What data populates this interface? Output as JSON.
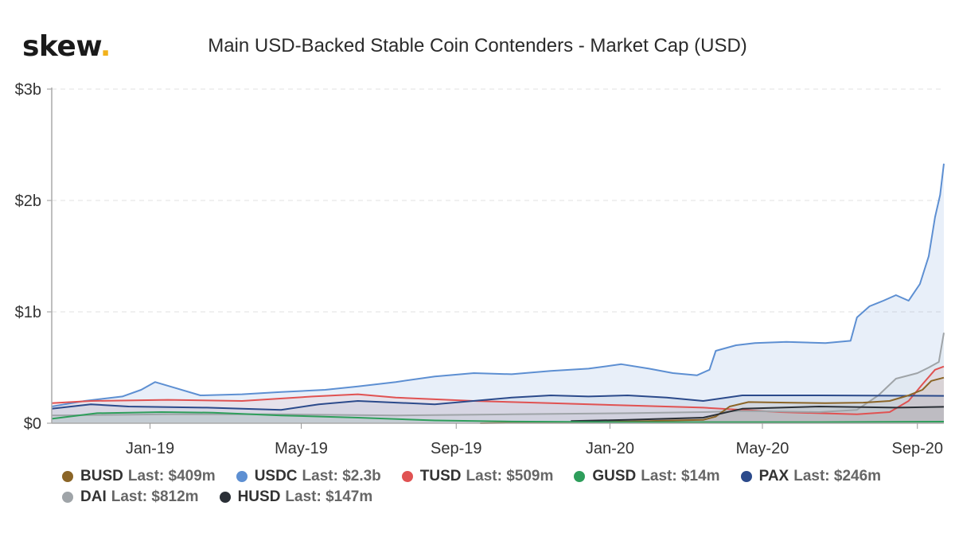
{
  "logo": {
    "text": "skew",
    "dot": "."
  },
  "chart_data": {
    "type": "area",
    "title": "Main USD-Backed Stable Coin Contenders - Market Cap (USD)",
    "xlabel": "",
    "ylabel": "",
    "x_ticks": [
      "Jan-19",
      "May-19",
      "Sep-19",
      "Jan-20",
      "May-20",
      "Sep-20"
    ],
    "y_ticks": [
      "$0",
      "$1b",
      "$2b",
      "$3b"
    ],
    "ylim": [
      0,
      3000
    ],
    "y_unit": "millions USD",
    "xlim": [
      "2018-10-15",
      "2020-09-22"
    ],
    "grid": "horizontal dashed",
    "legend_position": "bottom",
    "series": [
      {
        "name": "BUSD",
        "last_label": "Last: $409m",
        "color": "#8b6527",
        "points": [
          [
            "2019-09-20",
            0
          ],
          [
            "2019-10-20",
            5
          ],
          [
            "2019-12-15",
            10
          ],
          [
            "2020-01-15",
            15
          ],
          [
            "2020-02-20",
            25
          ],
          [
            "2020-03-15",
            30
          ],
          [
            "2020-03-25",
            60
          ],
          [
            "2020-04-05",
            150
          ],
          [
            "2020-04-20",
            190
          ],
          [
            "2020-05-20",
            185
          ],
          [
            "2020-06-20",
            180
          ],
          [
            "2020-07-20",
            185
          ],
          [
            "2020-08-10",
            200
          ],
          [
            "2020-08-25",
            250
          ],
          [
            "2020-09-05",
            300
          ],
          [
            "2020-09-12",
            380
          ],
          [
            "2020-09-22",
            409
          ]
        ]
      },
      {
        "name": "USDC",
        "last_label": "Last: $2.3b",
        "color": "#5d8fd2",
        "points": [
          [
            "2018-10-15",
            150
          ],
          [
            "2018-11-10",
            200
          ],
          [
            "2018-12-10",
            240
          ],
          [
            "2018-12-25",
            300
          ],
          [
            "2019-01-05",
            370
          ],
          [
            "2019-01-20",
            320
          ],
          [
            "2019-02-10",
            250
          ],
          [
            "2019-03-15",
            260
          ],
          [
            "2019-04-15",
            280
          ],
          [
            "2019-05-20",
            300
          ],
          [
            "2019-06-15",
            330
          ],
          [
            "2019-07-15",
            370
          ],
          [
            "2019-08-15",
            420
          ],
          [
            "2019-09-15",
            450
          ],
          [
            "2019-10-15",
            440
          ],
          [
            "2019-11-15",
            470
          ],
          [
            "2019-12-15",
            490
          ],
          [
            "2020-01-10",
            530
          ],
          [
            "2020-02-01",
            490
          ],
          [
            "2020-02-20",
            450
          ],
          [
            "2020-03-10",
            430
          ],
          [
            "2020-03-20",
            480
          ],
          [
            "2020-03-25",
            650
          ],
          [
            "2020-04-10",
            700
          ],
          [
            "2020-04-25",
            720
          ],
          [
            "2020-05-20",
            730
          ],
          [
            "2020-06-20",
            720
          ],
          [
            "2020-07-10",
            740
          ],
          [
            "2020-07-15",
            950
          ],
          [
            "2020-07-25",
            1050
          ],
          [
            "2020-08-05",
            1100
          ],
          [
            "2020-08-15",
            1150
          ],
          [
            "2020-08-25",
            1100
          ],
          [
            "2020-09-03",
            1250
          ],
          [
            "2020-09-10",
            1500
          ],
          [
            "2020-09-15",
            1850
          ],
          [
            "2020-09-19",
            2050
          ],
          [
            "2020-09-22",
            2330
          ]
        ]
      },
      {
        "name": "TUSD",
        "last_label": "Last: $509m",
        "color": "#e05252",
        "points": [
          [
            "2018-10-15",
            180
          ],
          [
            "2018-11-15",
            200
          ],
          [
            "2019-01-15",
            210
          ],
          [
            "2019-03-15",
            200
          ],
          [
            "2019-05-10",
            240
          ],
          [
            "2019-06-15",
            260
          ],
          [
            "2019-07-15",
            230
          ],
          [
            "2019-09-15",
            200
          ],
          [
            "2019-11-15",
            180
          ],
          [
            "2020-01-15",
            160
          ],
          [
            "2020-03-15",
            140
          ],
          [
            "2020-05-15",
            100
          ],
          [
            "2020-07-15",
            80
          ],
          [
            "2020-08-10",
            100
          ],
          [
            "2020-08-25",
            200
          ],
          [
            "2020-09-05",
            350
          ],
          [
            "2020-09-15",
            480
          ],
          [
            "2020-09-22",
            509
          ]
        ]
      },
      {
        "name": "GUSD",
        "last_label": "Last: $14m",
        "color": "#2e9e5b",
        "points": [
          [
            "2018-10-15",
            40
          ],
          [
            "2018-11-20",
            90
          ],
          [
            "2019-01-10",
            100
          ],
          [
            "2019-02-20",
            95
          ],
          [
            "2019-04-15",
            70
          ],
          [
            "2019-06-15",
            50
          ],
          [
            "2019-08-15",
            25
          ],
          [
            "2019-10-15",
            15
          ],
          [
            "2020-01-15",
            10
          ],
          [
            "2020-06-15",
            10
          ],
          [
            "2020-09-22",
            14
          ]
        ]
      },
      {
        "name": "PAX",
        "last_label": "Last: $246m",
        "color": "#2b4a8b",
        "points": [
          [
            "2018-10-15",
            130
          ],
          [
            "2018-11-15",
            170
          ],
          [
            "2018-12-15",
            150
          ],
          [
            "2019-02-15",
            140
          ],
          [
            "2019-04-15",
            120
          ],
          [
            "2019-05-15",
            170
          ],
          [
            "2019-06-15",
            200
          ],
          [
            "2019-08-15",
            170
          ],
          [
            "2019-10-15",
            230
          ],
          [
            "2019-11-15",
            250
          ],
          [
            "2019-12-15",
            240
          ],
          [
            "2020-01-15",
            250
          ],
          [
            "2020-02-15",
            230
          ],
          [
            "2020-03-15",
            200
          ],
          [
            "2020-04-15",
            250
          ],
          [
            "2020-06-15",
            250
          ],
          [
            "2020-09-22",
            246
          ]
        ]
      },
      {
        "name": "DAI",
        "last_label": "Last: $812m",
        "color": "#9fa4a8",
        "points": [
          [
            "2018-10-15",
            70
          ],
          [
            "2019-01-15",
            80
          ],
          [
            "2019-04-15",
            80
          ],
          [
            "2019-07-15",
            70
          ],
          [
            "2019-10-15",
            80
          ],
          [
            "2020-01-15",
            90
          ],
          [
            "2020-03-15",
            100
          ],
          [
            "2020-04-15",
            110
          ],
          [
            "2020-06-15",
            100
          ],
          [
            "2020-07-15",
            120
          ],
          [
            "2020-08-01",
            250
          ],
          [
            "2020-08-15",
            400
          ],
          [
            "2020-09-01",
            450
          ],
          [
            "2020-09-10",
            500
          ],
          [
            "2020-09-18",
            550
          ],
          [
            "2020-09-22",
            812
          ]
        ]
      },
      {
        "name": "HUSD",
        "last_label": "Last: $147m",
        "color": "#2a2f36",
        "points": [
          [
            "2019-12-01",
            20
          ],
          [
            "2020-01-15",
            30
          ],
          [
            "2020-03-15",
            50
          ],
          [
            "2020-04-15",
            130
          ],
          [
            "2020-06-15",
            150
          ],
          [
            "2020-08-15",
            140
          ],
          [
            "2020-09-22",
            147
          ]
        ]
      }
    ]
  }
}
